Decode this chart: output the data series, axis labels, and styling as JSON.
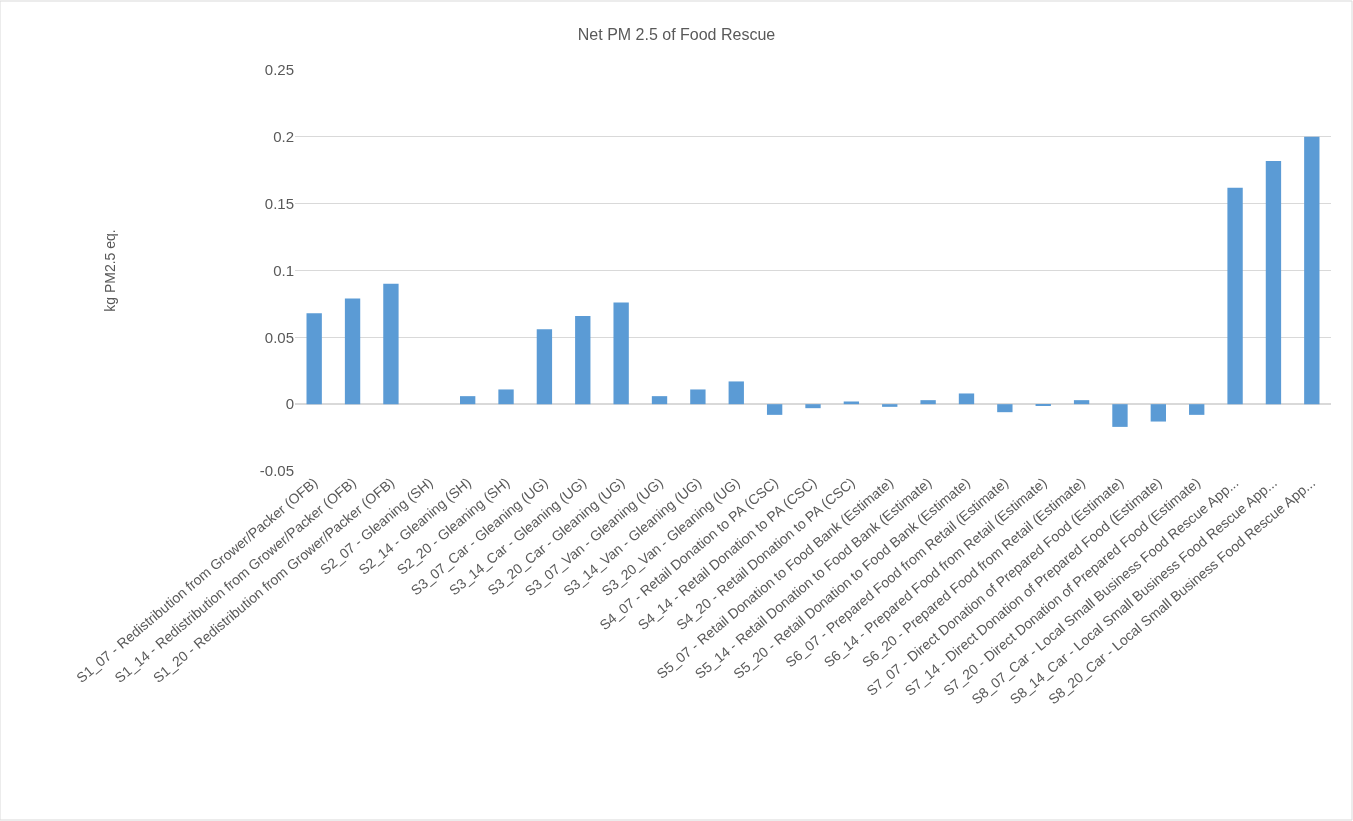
{
  "chart_data": {
    "type": "bar",
    "title": "Net PM 2.5 of Food Rescue",
    "ylabel": "kg PM2.5 eq.",
    "categories": [
      "S1_07 - Redistribution from Grower/Packer (OFB)",
      "S1_14 - Redistribution from Grower/Packer (OFB)",
      "S1_20 - Redistribution from Grower/Packer (OFB)",
      "S2_07 - Gleaning (SH)",
      "S2_14 - Gleaning (SH)",
      "S2_20 - Gleaning (SH)",
      "S3_07_Car - Gleaning (UG)",
      "S3_14_Car - Gleaning (UG)",
      "S3_20_Car - Gleaning (UG)",
      "S3_07_Van - Gleaning (UG)",
      "S3_14_Van - Gleaning (UG)",
      "S3_20_Van - Gleaning (UG)",
      "S4_07 - Retail Donation to PA (CSC)",
      "S4_14 - Retail Donation to PA (CSC)",
      "S4_20 - Retail Donation to PA (CSC)",
      "S5_07 - Retail Donation to Food Bank (Estimate)",
      "S5_14 - Retail Donation to Food Bank (Estimate)",
      "S5_20 - Retail Donation to Food Bank (Estimate)",
      "S6_07 - Prepared Food from Retail (Estimate)",
      "S6_14 - Prepared Food from Retail (Estimate)",
      "S6_20 - Prepared Food from Retail (Estimate)",
      "S7_07 - Direct Donation of Prepared Food (Estimate)",
      "S7_14 - Direct Donation of Prepared Food (Estimate)",
      "S7_20 - Direct Donation of Prepared Food (Estimate)",
      "S8_07_Car - Local Small Business Food Rescue App...",
      "S8_14_Car - Local Small Business Food Rescue App...",
      "S8_20_Car - Local Small Business Food Rescue App..."
    ],
    "values": [
      0.068,
      0.079,
      0.09,
      0,
      0.006,
      0.011,
      0.056,
      0.066,
      0.076,
      0.006,
      0.011,
      0.017,
      -0.008,
      -0.003,
      0.002,
      -0.002,
      0.003,
      0.008,
      -0.006,
      -0.001,
      0.003,
      -0.017,
      -0.013,
      -0.008,
      0.162,
      0.182,
      0.2
    ],
    "color": "#5b9bd5",
    "ylim": [
      -0.05,
      0.25
    ],
    "yticks": [
      -0.05,
      0,
      0.05,
      0.1,
      0.15,
      0.2,
      0.25
    ],
    "grid": "y",
    "legend": false
  }
}
